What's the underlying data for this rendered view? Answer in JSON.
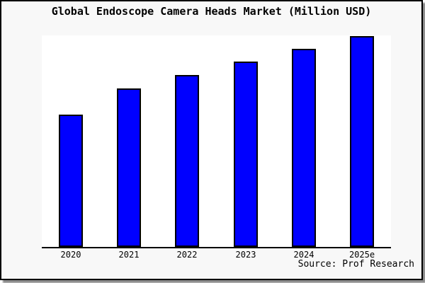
{
  "window": {
    "background_color": "#f8f8f8",
    "border_color": "#000000",
    "shadow_color": "#8a8a8a"
  },
  "source": "Source: Prof Research",
  "chart_data": {
    "type": "bar",
    "title": "Global Endoscope Camera Heads Market (Million USD)",
    "categories": [
      "2020",
      "2021",
      "2022",
      "2023",
      "2024",
      "2025e"
    ],
    "values": [
      62.7,
      75.0,
      81.3,
      87.7,
      93.7,
      99.7
    ],
    "value_unit": "percent_of_plot_height",
    "note": "No y-axis scale or data labels are shown in the chart; values are relative bar heights measured as percent of the plot height.",
    "xlabel": "",
    "ylabel": "",
    "ylim": [
      0,
      100
    ],
    "grid": false,
    "legend": false,
    "bar_color": "#0000ff",
    "bar_border_color": "#000000",
    "plot_background": "#ffffff"
  }
}
